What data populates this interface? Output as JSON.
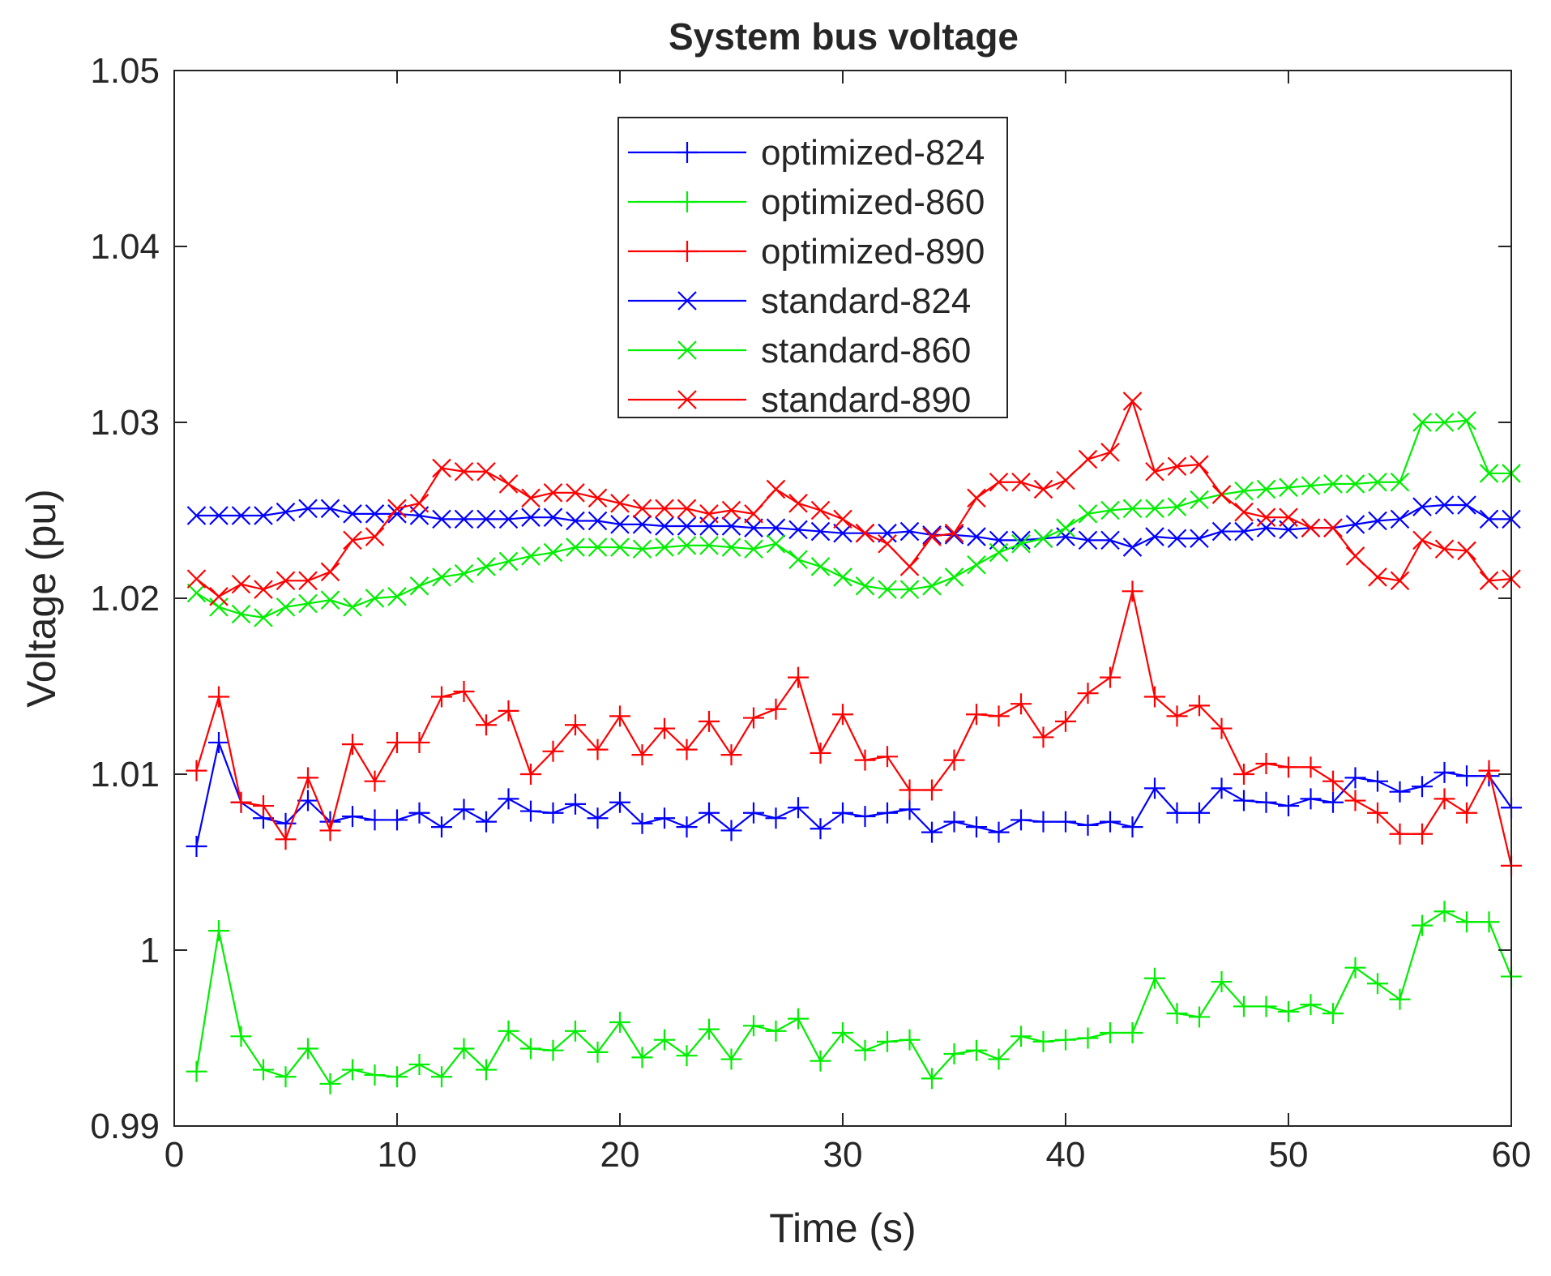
{
  "chart_data": {
    "type": "line",
    "title": "System bus voltage",
    "xlabel": "Time (s)",
    "ylabel": "Voltage (pu)",
    "xlim": [
      0,
      60
    ],
    "ylim": [
      0.99,
      1.05
    ],
    "xticks": [
      0,
      10,
      20,
      30,
      40,
      50,
      60
    ],
    "xtick_labels": [
      "0",
      "10",
      "20",
      "30",
      "40",
      "50",
      "60"
    ],
    "yticks": [
      0.99,
      1.0,
      1.01,
      1.02,
      1.03,
      1.04,
      1.05
    ],
    "ytick_labels": [
      "0.99",
      "1",
      "1.01",
      "1.02",
      "1.03",
      "1.04",
      "1.05"
    ],
    "grid": false,
    "legend_position": "top-center",
    "x": [
      1,
      2,
      3,
      4,
      5,
      6,
      7,
      8,
      9,
      10,
      11,
      12,
      13,
      14,
      15,
      16,
      17,
      18,
      19,
      20,
      21,
      22,
      23,
      24,
      25,
      26,
      27,
      28,
      29,
      30,
      31,
      32,
      33,
      34,
      35,
      36,
      37,
      38,
      39,
      40,
      41,
      42,
      43,
      44,
      45,
      46,
      47,
      48,
      49,
      50,
      51,
      52,
      53,
      54,
      55,
      56,
      57,
      58,
      59,
      60
    ],
    "series": [
      {
        "name": "optimized-824",
        "color": "#0000ff",
        "marker": "plus",
        "values": [
          1.0059,
          1.0118,
          1.0084,
          1.0075,
          1.0072,
          1.0085,
          1.0073,
          1.0076,
          1.0074,
          1.0074,
          1.0078,
          1.007,
          1.008,
          1.0073,
          1.0086,
          1.0079,
          1.0078,
          1.0083,
          1.0075,
          1.0084,
          1.0072,
          1.0075,
          1.007,
          1.0078,
          1.0068,
          1.0078,
          1.0075,
          1.0081,
          1.0069,
          1.0078,
          1.0076,
          1.0078,
          1.008,
          1.0067,
          1.0073,
          1.007,
          1.0067,
          1.0074,
          1.0073,
          1.0073,
          1.0071,
          1.0073,
          1.007,
          1.0092,
          1.0078,
          1.0078,
          1.0092,
          1.0085,
          1.0084,
          1.0082,
          1.0086,
          1.0084,
          1.0098,
          1.0096,
          1.009,
          1.0093,
          1.0101,
          1.0099,
          1.0099,
          1.0081
        ]
      },
      {
        "name": "optimized-860",
        "color": "#00ee00",
        "marker": "plus",
        "values": [
          0.9931,
          1.0011,
          0.9951,
          0.9932,
          0.9928,
          0.9944,
          0.9924,
          0.9932,
          0.9929,
          0.9928,
          0.9935,
          0.9928,
          0.9944,
          0.9932,
          0.9954,
          0.9944,
          0.9943,
          0.9954,
          0.9942,
          0.9959,
          0.9939,
          0.9949,
          0.994,
          0.9955,
          0.9938,
          0.9957,
          0.9954,
          0.9961,
          0.9937,
          0.9953,
          0.9943,
          0.9948,
          0.9949,
          0.9927,
          0.9941,
          0.9943,
          0.9938,
          0.9951,
          0.9948,
          0.9949,
          0.995,
          0.9953,
          0.9953,
          0.9984,
          0.9964,
          0.9962,
          0.9982,
          0.9968,
          0.9968,
          0.9965,
          0.9969,
          0.9964,
          0.999,
          0.9981,
          0.9972,
          1.0014,
          1.0022,
          1.0016,
          1.0016,
          0.9985
        ]
      },
      {
        "name": "optimized-890",
        "color": "#ff0000",
        "marker": "plus",
        "values": [
          1.0102,
          1.0144,
          1.0084,
          1.0082,
          1.0063,
          1.0098,
          1.0068,
          1.0117,
          1.0096,
          1.0118,
          1.0118,
          1.0144,
          1.0147,
          1.0128,
          1.0136,
          1.01,
          1.0113,
          1.0128,
          1.0114,
          1.0133,
          1.0111,
          1.0126,
          1.0114,
          1.013,
          1.0111,
          1.0132,
          1.0137,
          1.0155,
          1.0112,
          1.0134,
          1.0108,
          1.011,
          1.0091,
          1.0091,
          1.0108,
          1.0134,
          1.0133,
          1.014,
          1.0121,
          1.013,
          1.0146,
          1.0155,
          1.0204,
          1.0144,
          1.0133,
          1.0139,
          1.0126,
          1.01,
          1.0106,
          1.0104,
          1.0104,
          1.0096,
          1.0085,
          1.0078,
          1.0066,
          1.0066,
          1.0086,
          1.0078,
          1.0102,
          1.0048
        ]
      },
      {
        "name": "standard-824",
        "color": "#0000ff",
        "marker": "x",
        "values": [
          1.0247,
          1.0247,
          1.0247,
          1.0247,
          1.0249,
          1.0251,
          1.0251,
          1.0248,
          1.0248,
          1.0248,
          1.0247,
          1.0245,
          1.0245,
          1.0245,
          1.0245,
          1.0246,
          1.0246,
          1.0244,
          1.0244,
          1.0242,
          1.0242,
          1.0241,
          1.0241,
          1.0241,
          1.0241,
          1.024,
          1.024,
          1.0239,
          1.0238,
          1.0237,
          1.0237,
          1.0237,
          1.0238,
          1.0236,
          1.0236,
          1.0235,
          1.0233,
          1.0233,
          1.0234,
          1.0235,
          1.0233,
          1.0233,
          1.0229,
          1.0235,
          1.0234,
          1.0234,
          1.0238,
          1.0238,
          1.024,
          1.0239,
          1.024,
          1.024,
          1.0242,
          1.0244,
          1.0245,
          1.0252,
          1.0253,
          1.0253,
          1.0245,
          1.0245
        ]
      },
      {
        "name": "standard-860",
        "color": "#00ee00",
        "marker": "x",
        "values": [
          1.0203,
          1.0195,
          1.0191,
          1.0189,
          1.0195,
          1.0197,
          1.0199,
          1.0195,
          1.02,
          1.0201,
          1.0207,
          1.0212,
          1.0214,
          1.0218,
          1.0221,
          1.0224,
          1.0226,
          1.0229,
          1.0229,
          1.0229,
          1.0228,
          1.0229,
          1.023,
          1.023,
          1.0229,
          1.0228,
          1.0231,
          1.0222,
          1.0218,
          1.0212,
          1.0207,
          1.0205,
          1.0205,
          1.0207,
          1.0212,
          1.0219,
          1.0226,
          1.0231,
          1.0234,
          1.024,
          1.0248,
          1.025,
          1.0251,
          1.0251,
          1.0252,
          1.0256,
          1.0259,
          1.0261,
          1.0262,
          1.0263,
          1.0264,
          1.0265,
          1.0265,
          1.0266,
          1.0266,
          1.03,
          1.03,
          1.0301,
          1.0271,
          1.0271
        ]
      },
      {
        "name": "standard-890",
        "color": "#ff0000",
        "marker": "x",
        "values": [
          1.0211,
          1.0201,
          1.0208,
          1.0205,
          1.021,
          1.021,
          1.0215,
          1.0233,
          1.0235,
          1.0251,
          1.0254,
          1.0274,
          1.0272,
          1.0272,
          1.0265,
          1.0257,
          1.026,
          1.026,
          1.0257,
          1.0254,
          1.0251,
          1.0251,
          1.0251,
          1.0248,
          1.025,
          1.0248,
          1.0262,
          1.0254,
          1.025,
          1.0245,
          1.0237,
          1.0231,
          1.0218,
          1.0235,
          1.0237,
          1.0257,
          1.0266,
          1.0266,
          1.0262,
          1.0267,
          1.0279,
          1.0283,
          1.0312,
          1.0272,
          1.0275,
          1.0276,
          1.0259,
          1.0249,
          1.0246,
          1.0246,
          1.024,
          1.024,
          1.0224,
          1.0212,
          1.021,
          1.0233,
          1.0228,
          1.0227,
          1.021,
          1.0211
        ]
      }
    ]
  }
}
